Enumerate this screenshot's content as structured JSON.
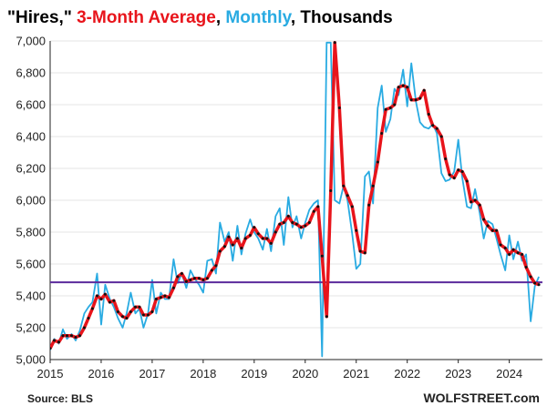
{
  "chart_data": {
    "type": "line",
    "title_parts": [
      {
        "text": "\"Hires,\" ",
        "color": "#000000"
      },
      {
        "text": "3-Month Average",
        "color": "#e8141b"
      },
      {
        "text": ", ",
        "color": "#000000"
      },
      {
        "text": "Monthly",
        "color": "#29abe2"
      },
      {
        "text": ", Thousands",
        "color": "#000000"
      }
    ],
    "source": "Source: BLS",
    "brand": "WOLFSTREET.com",
    "x_ticks": [
      "2015",
      "2016",
      "2017",
      "2018",
      "2019",
      "2020",
      "2021",
      "2022",
      "2023",
      "2024"
    ],
    "y_ticks": [
      "5,000",
      "5,200",
      "5,400",
      "5,600",
      "5,800",
      "6,000",
      "6,200",
      "6,400",
      "6,600",
      "6,800",
      "7,000"
    ],
    "xlim": [
      2015.0,
      2024.65
    ],
    "ylim": [
      5000,
      7000
    ],
    "reference_line": {
      "value": 5485,
      "color": "#5b2a9c"
    },
    "colors": {
      "monthly": "#29abe2",
      "average": "#e8141b",
      "average_markers": "#111111"
    },
    "series": [
      {
        "name": "Monthly",
        "x": [
          2015.0,
          2015.08,
          2015.17,
          2015.25,
          2015.33,
          2015.42,
          2015.5,
          2015.58,
          2015.67,
          2015.75,
          2015.83,
          2015.92,
          2016.0,
          2016.08,
          2016.17,
          2016.25,
          2016.33,
          2016.42,
          2016.5,
          2016.58,
          2016.67,
          2016.75,
          2016.83,
          2016.92,
          2017.0,
          2017.08,
          2017.17,
          2017.25,
          2017.33,
          2017.42,
          2017.5,
          2017.58,
          2017.67,
          2017.75,
          2017.83,
          2017.92,
          2018.0,
          2018.08,
          2018.17,
          2018.25,
          2018.33,
          2018.42,
          2018.5,
          2018.58,
          2018.67,
          2018.75,
          2018.83,
          2018.92,
          2019.0,
          2019.08,
          2019.17,
          2019.25,
          2019.33,
          2019.42,
          2019.5,
          2019.58,
          2019.67,
          2019.75,
          2019.83,
          2019.92,
          2020.0,
          2020.08,
          2020.17,
          2020.25,
          2020.33,
          2020.42,
          2020.5,
          2020.58,
          2020.67,
          2020.75,
          2020.83,
          2020.92,
          2021.0,
          2021.08,
          2021.17,
          2021.25,
          2021.33,
          2021.42,
          2021.5,
          2021.58,
          2021.67,
          2021.75,
          2021.83,
          2021.92,
          2022.0,
          2022.08,
          2022.17,
          2022.25,
          2022.33,
          2022.42,
          2022.5,
          2022.58,
          2022.67,
          2022.75,
          2022.83,
          2022.92,
          2023.0,
          2023.08,
          2023.17,
          2023.25,
          2023.33,
          2023.42,
          2023.5,
          2023.58,
          2023.67,
          2023.75,
          2023.83,
          2023.92,
          2024.0,
          2024.08,
          2024.17,
          2024.25,
          2024.33,
          2024.42,
          2024.5,
          2024.58
        ],
        "values": [
          5060,
          5130,
          5100,
          5190,
          5130,
          5160,
          5120,
          5180,
          5290,
          5330,
          5360,
          5540,
          5220,
          5470,
          5380,
          5330,
          5260,
          5200,
          5290,
          5420,
          5290,
          5320,
          5200,
          5290,
          5500,
          5290,
          5420,
          5380,
          5380,
          5630,
          5480,
          5540,
          5450,
          5560,
          5510,
          5470,
          5420,
          5620,
          5630,
          5540,
          5860,
          5740,
          5800,
          5620,
          5840,
          5660,
          5790,
          5880,
          5800,
          5760,
          5690,
          5820,
          5680,
          5900,
          5950,
          5720,
          6020,
          5830,
          5900,
          5760,
          5860,
          5940,
          5980,
          6000,
          5020,
          6990,
          6990,
          6000,
          5980,
          6090,
          6000,
          5790,
          5570,
          5600,
          6150,
          6180,
          5980,
          6580,
          6720,
          6430,
          6510,
          6700,
          6660,
          6820,
          6590,
          6860,
          6620,
          6490,
          6460,
          6450,
          6480,
          6420,
          6170,
          6120,
          6130,
          6180,
          6380,
          6140,
          5960,
          5950,
          6070,
          5920,
          5760,
          5870,
          5850,
          5760,
          5660,
          5560,
          5780,
          5630,
          5740,
          5620,
          5660,
          5240,
          5460,
          5520
        ]
      },
      {
        "name": "3-Month Average",
        "x": [
          2015.0,
          2015.08,
          2015.17,
          2015.25,
          2015.33,
          2015.42,
          2015.5,
          2015.58,
          2015.67,
          2015.75,
          2015.83,
          2015.92,
          2016.0,
          2016.08,
          2016.17,
          2016.25,
          2016.33,
          2016.42,
          2016.5,
          2016.58,
          2016.67,
          2016.75,
          2016.83,
          2016.92,
          2017.0,
          2017.08,
          2017.17,
          2017.25,
          2017.33,
          2017.42,
          2017.5,
          2017.58,
          2017.67,
          2017.75,
          2017.83,
          2017.92,
          2018.0,
          2018.08,
          2018.17,
          2018.25,
          2018.33,
          2018.42,
          2018.5,
          2018.58,
          2018.67,
          2018.75,
          2018.83,
          2018.92,
          2019.0,
          2019.08,
          2019.17,
          2019.25,
          2019.33,
          2019.42,
          2019.5,
          2019.58,
          2019.67,
          2019.75,
          2019.83,
          2019.92,
          2020.0,
          2020.08,
          2020.17,
          2020.25,
          2020.33,
          2020.42,
          2020.5,
          2020.58,
          2020.67,
          2020.75,
          2020.83,
          2020.92,
          2021.0,
          2021.08,
          2021.17,
          2021.25,
          2021.33,
          2021.42,
          2021.5,
          2021.58,
          2021.67,
          2021.75,
          2021.83,
          2021.92,
          2022.0,
          2022.08,
          2022.17,
          2022.25,
          2022.33,
          2022.42,
          2022.5,
          2022.58,
          2022.67,
          2022.75,
          2022.83,
          2022.92,
          2023.0,
          2023.08,
          2023.17,
          2023.25,
          2023.33,
          2023.42,
          2023.5,
          2023.58,
          2023.67,
          2023.75,
          2023.83,
          2023.92,
          2024.0,
          2024.08,
          2024.17,
          2024.25,
          2024.33,
          2024.42,
          2024.5,
          2024.58
        ],
        "values": [
          5070,
          5120,
          5110,
          5150,
          5150,
          5150,
          5140,
          5150,
          5200,
          5260,
          5320,
          5400,
          5380,
          5410,
          5360,
          5370,
          5300,
          5270,
          5260,
          5300,
          5330,
          5330,
          5280,
          5280,
          5300,
          5380,
          5390,
          5400,
          5390,
          5450,
          5520,
          5540,
          5490,
          5500,
          5510,
          5510,
          5500,
          5510,
          5560,
          5590,
          5680,
          5710,
          5770,
          5720,
          5760,
          5700,
          5760,
          5780,
          5830,
          5790,
          5760,
          5760,
          5730,
          5800,
          5850,
          5860,
          5900,
          5860,
          5850,
          5830,
          5840,
          5860,
          5930,
          5960,
          5650,
          5270,
          6060,
          6990,
          6580,
          6090,
          6030,
          5960,
          5810,
          5680,
          5670,
          5970,
          6090,
          6240,
          6420,
          6570,
          6580,
          6600,
          6710,
          6720,
          6710,
          6630,
          6630,
          6640,
          6690,
          6540,
          6470,
          6450,
          6400,
          6260,
          6160,
          6140,
          6190,
          6180,
          6120,
          5990,
          6000,
          5970,
          5880,
          5840,
          5810,
          5810,
          5720,
          5700,
          5660,
          5690,
          5670,
          5660,
          5580,
          5520,
          5480,
          5470
        ]
      }
    ]
  }
}
